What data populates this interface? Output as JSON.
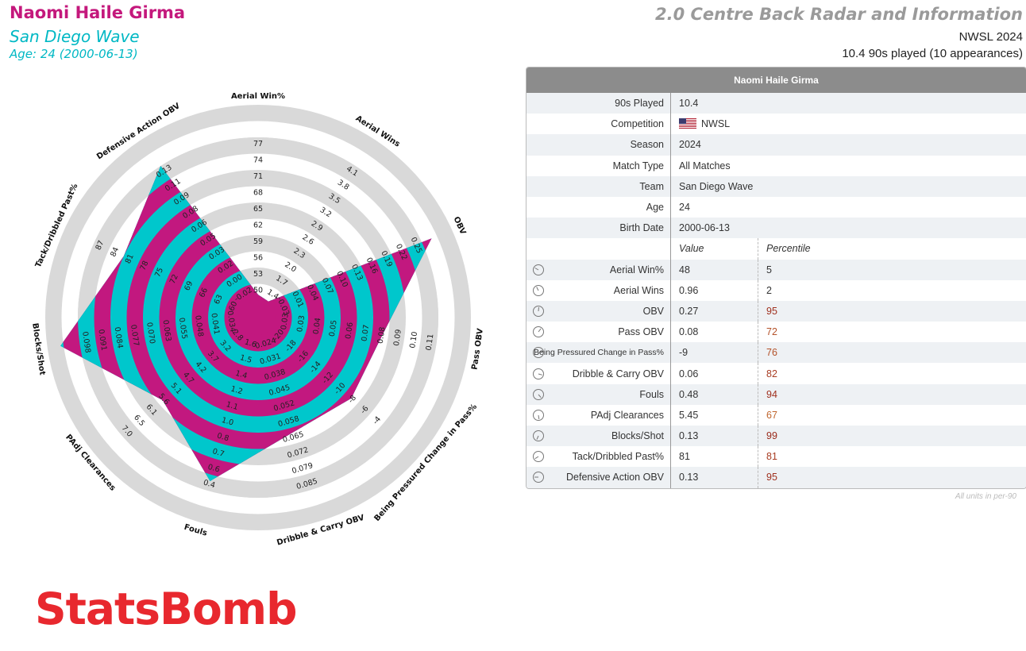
{
  "header": {
    "player_name": "Naomi Haile Girma",
    "team": "San Diego Wave",
    "age_line": "Age: 24 (2000-06-13)",
    "report_title": "2.0 Centre Back Radar and Information",
    "competition_line": "NWSL 2024",
    "played_line": "10.4 90s played (10 appearances)"
  },
  "chart_data": {
    "type": "radar",
    "ring_count": 10,
    "colors": {
      "ring_a": "#00c7cc",
      "ring_b": "#c2187f",
      "outer_track": "#d9d9d9",
      "text": "#222222"
    },
    "axes": [
      {
        "name": "Aerial Win%",
        "value": 48,
        "ticks": [
          "50",
          "53",
          "56",
          "59",
          "62",
          "65",
          "68",
          "71",
          "74",
          "77"
        ]
      },
      {
        "name": "Aerial Wins",
        "value": 0.96,
        "ticks": [
          "1.4",
          "1.7",
          "2.0",
          "2.3",
          "2.6",
          "2.9",
          "3.2",
          "3.5",
          "3.8",
          "4.1"
        ]
      },
      {
        "name": "OBV",
        "value": 0.27,
        "ticks": [
          "-0.03",
          "0.01",
          "0.04",
          "0.07",
          "0.10",
          "0.13",
          "0.16",
          "0.19",
          "0.22",
          "0.25"
        ]
      },
      {
        "name": "Pass OBV",
        "value": 0.08,
        "ticks": [
          "0.03",
          "0.03",
          "0.04",
          "0.05",
          "0.06",
          "0.07",
          "0.08",
          "0.09",
          "0.10",
          "0.11"
        ]
      },
      {
        "name": "Being Pressured Change in Pass%",
        "value": -9,
        "ticks": [
          "-20",
          "-18",
          "-16",
          "-14",
          "-12",
          "-10",
          "-8",
          "-6",
          "-4",
          ""
        ]
      },
      {
        "name": "Dribble & Carry OBV",
        "value": 0.06,
        "ticks": [
          "0.024",
          "0.031",
          "0.038",
          "0.045",
          "0.052",
          "0.058",
          "0.065",
          "0.072",
          "0.079",
          "0.085"
        ]
      },
      {
        "name": "Fouls",
        "value": 0.48,
        "ticks": [
          "1.6",
          "1.5",
          "1.4",
          "1.2",
          "1.1",
          "1.0",
          "0.8",
          "0.7",
          "0.6",
          "0.4"
        ]
      },
      {
        "name": "PAdj Clearances",
        "value": 5.45,
        "ticks": [
          "2.8",
          "3.2",
          "3.7",
          "4.2",
          "4.7",
          "5.1",
          "5.6",
          "6.1",
          "6.5",
          "7.0"
        ]
      },
      {
        "name": "Blocks/Shot",
        "value": 0.13,
        "ticks": [
          "0.034",
          "0.041",
          "0.048",
          "0.055",
          "0.063",
          "0.070",
          "0.077",
          "0.084",
          "0.091",
          "0.098"
        ]
      },
      {
        "name": "Tack/Dribbled Past%",
        "value": 81,
        "ticks": [
          "60",
          "63",
          "66",
          "69",
          "72",
          "75",
          "78",
          "81",
          "84",
          "87"
        ]
      },
      {
        "name": "Defensive Action OBV",
        "value": 0.13,
        "ticks": [
          "-0.02",
          "0.00",
          "0.02",
          "0.03",
          "0.05",
          "0.06",
          "0.08",
          "0.09",
          "0.11",
          "0.13"
        ]
      }
    ]
  },
  "table": {
    "header": "Naomi Haile Girma",
    "info_rows": [
      {
        "label": "90s Played",
        "value": "10.4"
      },
      {
        "label": "Competition",
        "value": "NWSL",
        "flag": "us-flag"
      },
      {
        "label": "Season",
        "value": "2024"
      },
      {
        "label": "Match Type",
        "value": "All Matches"
      },
      {
        "label": "Team",
        "value": "San Diego Wave"
      },
      {
        "label": "Age",
        "value": "24"
      },
      {
        "label": "Birth Date",
        "value": "2000-06-13"
      }
    ],
    "col_value": "Value",
    "col_percentile": "Percentile",
    "stat_rows": [
      {
        "label": "Aerial Win%",
        "value": "48",
        "pct": "5",
        "pct_color": "#333333",
        "icon": "gauge-icon"
      },
      {
        "label": "Aerial Wins",
        "value": "0.96",
        "pct": "2",
        "pct_color": "#333333",
        "icon": "gauge-icon"
      },
      {
        "label": "OBV",
        "value": "0.27",
        "pct": "95",
        "pct_color": "#a0301e",
        "icon": "gauge-icon"
      },
      {
        "label": "Pass OBV",
        "value": "0.08",
        "pct": "72",
        "pct_color": "#b4522a",
        "icon": "gauge-icon"
      },
      {
        "label": "Being Pressured Change in Pass%",
        "value": "-9",
        "pct": "76",
        "pct_color": "#b4522a",
        "icon": "gauge-icon"
      },
      {
        "label": "Dribble & Carry OBV",
        "value": "0.06",
        "pct": "82",
        "pct_color": "#a83c22",
        "icon": "gauge-icon"
      },
      {
        "label": "Fouls",
        "value": "0.48",
        "pct": "94",
        "pct_color": "#a0301e",
        "icon": "gauge-icon"
      },
      {
        "label": "PAdj Clearances",
        "value": "5.45",
        "pct": "67",
        "pct_color": "#c0662e",
        "icon": "gauge-icon"
      },
      {
        "label": "Blocks/Shot",
        "value": "0.13",
        "pct": "99",
        "pct_color": "#9a2a1a",
        "icon": "gauge-icon"
      },
      {
        "label": "Tack/Dribbled Past%",
        "value": "81",
        "pct": "81",
        "pct_color": "#a83c22",
        "icon": "gauge-icon"
      },
      {
        "label": "Defensive Action OBV",
        "value": "0.13",
        "pct": "95",
        "pct_color": "#a0301e",
        "icon": "gauge-icon"
      }
    ],
    "footnote": "All units in per-90"
  },
  "brand": {
    "logo_text": "StatsBomb",
    "color": "#e8282e"
  }
}
